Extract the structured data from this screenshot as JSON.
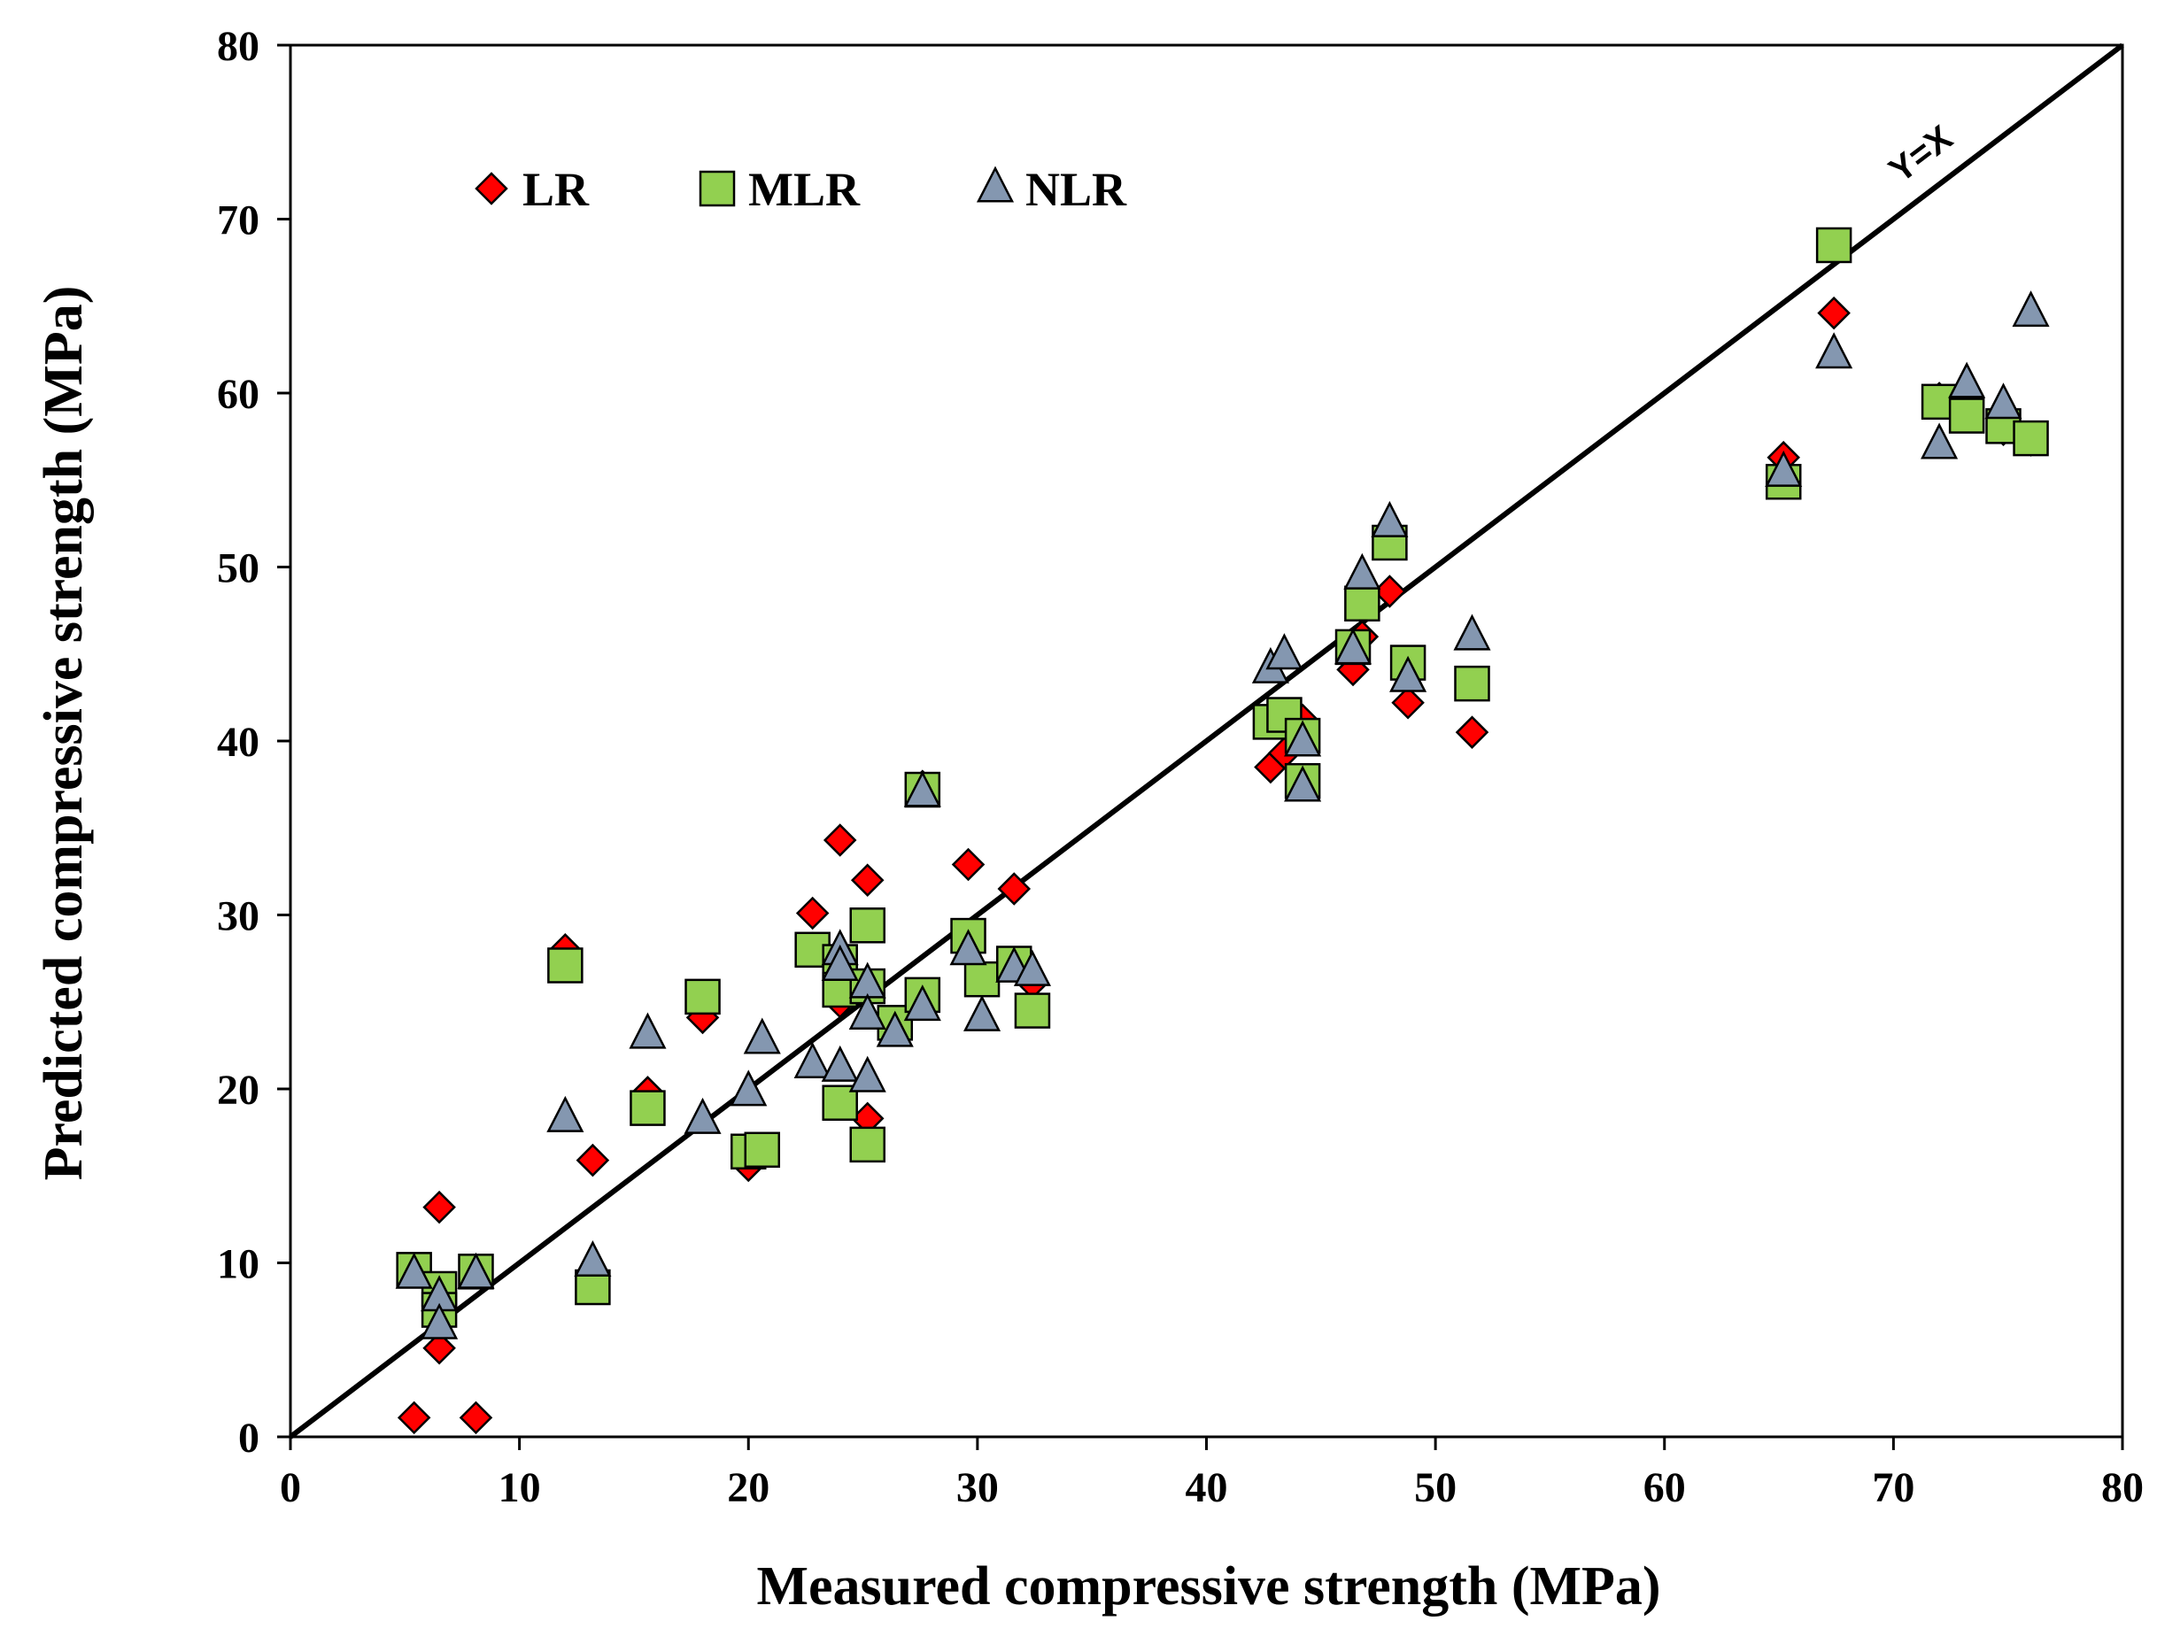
{
  "chart_data": {
    "type": "scatter",
    "title": "",
    "xlabel": "Measured compressive strength (MPa)",
    "ylabel": "Predicted compressive strength (MPa)",
    "xlim": [
      0,
      80
    ],
    "ylim": [
      0,
      80
    ],
    "xticks": [
      0,
      10,
      20,
      30,
      40,
      50,
      60,
      70,
      80
    ],
    "yticks": [
      0,
      10,
      20,
      30,
      40,
      50,
      60,
      70,
      80
    ],
    "grid": false,
    "legend_position": "top-left",
    "reference_line": {
      "label": "Y=X",
      "from": [
        0,
        0
      ],
      "to": [
        80,
        80
      ],
      "color": "#000000"
    },
    "series": [
      {
        "name": "LR",
        "marker": "diamond",
        "color": "#ff0000",
        "points": [
          [
            5.4,
            1.1
          ],
          [
            6.5,
            13.2
          ],
          [
            6.5,
            5.1
          ],
          [
            8.1,
            1.1
          ],
          [
            12.0,
            28.0
          ],
          [
            13.2,
            15.9
          ],
          [
            15.6,
            19.8
          ],
          [
            18.0,
            24.1
          ],
          [
            20.0,
            15.6
          ],
          [
            22.8,
            30.1
          ],
          [
            24.0,
            34.3
          ],
          [
            24.0,
            25.0
          ],
          [
            25.2,
            32.0
          ],
          [
            25.2,
            18.3
          ],
          [
            27.6,
            37.4
          ],
          [
            29.6,
            32.9
          ],
          [
            31.6,
            31.5
          ],
          [
            32.4,
            26.1
          ],
          [
            42.8,
            38.5
          ],
          [
            43.4,
            39.3
          ],
          [
            44.2,
            41.2
          ],
          [
            46.4,
            44.1
          ],
          [
            46.8,
            46.0
          ],
          [
            48.0,
            48.6
          ],
          [
            48.8,
            42.2
          ],
          [
            51.6,
            40.5
          ],
          [
            65.2,
            56.3
          ],
          [
            67.4,
            64.6
          ],
          [
            72.0,
            59.7
          ],
          [
            74.8,
            57.9
          ],
          [
            76.0,
            57.3
          ]
        ]
      },
      {
        "name": "MLR",
        "marker": "square",
        "color": "#92d050",
        "points": [
          [
            5.4,
            9.6
          ],
          [
            6.5,
            8.5
          ],
          [
            6.5,
            7.3
          ],
          [
            8.1,
            9.5
          ],
          [
            12.0,
            27.1
          ],
          [
            13.2,
            8.6
          ],
          [
            15.6,
            18.9
          ],
          [
            18.0,
            25.3
          ],
          [
            20.0,
            16.4
          ],
          [
            20.6,
            16.5
          ],
          [
            22.8,
            28.0
          ],
          [
            24.0,
            27.3
          ],
          [
            24.0,
            25.7
          ],
          [
            24.0,
            19.2
          ],
          [
            25.2,
            29.4
          ],
          [
            25.2,
            25.9
          ],
          [
            25.2,
            16.8
          ],
          [
            26.4,
            23.8
          ],
          [
            27.6,
            25.4
          ],
          [
            27.6,
            37.2
          ],
          [
            29.6,
            28.8
          ],
          [
            30.2,
            26.3
          ],
          [
            31.6,
            27.2
          ],
          [
            32.4,
            24.5
          ],
          [
            42.8,
            41.1
          ],
          [
            43.4,
            41.5
          ],
          [
            44.2,
            40.3
          ],
          [
            44.2,
            37.7
          ],
          [
            46.4,
            45.4
          ],
          [
            46.8,
            47.9
          ],
          [
            48.0,
            51.4
          ],
          [
            48.8,
            44.5
          ],
          [
            51.6,
            43.3
          ],
          [
            65.2,
            54.9
          ],
          [
            67.4,
            68.5
          ],
          [
            72.0,
            59.5
          ],
          [
            73.2,
            58.7
          ],
          [
            74.8,
            58.1
          ],
          [
            76.0,
            57.4
          ]
        ]
      },
      {
        "name": "NLR",
        "marker": "triangle",
        "color": "#8497b0",
        "points": [
          [
            5.4,
            9.3
          ],
          [
            6.5,
            8.0
          ],
          [
            6.5,
            6.4
          ],
          [
            8.1,
            9.3
          ],
          [
            12.0,
            18.3
          ],
          [
            13.2,
            10.0
          ],
          [
            15.6,
            23.1
          ],
          [
            18.0,
            18.2
          ],
          [
            20.0,
            19.8
          ],
          [
            20.6,
            22.8
          ],
          [
            22.8,
            21.4
          ],
          [
            24.0,
            27.9
          ],
          [
            24.0,
            27.0
          ],
          [
            24.0,
            21.2
          ],
          [
            25.2,
            26.0
          ],
          [
            25.2,
            24.2
          ],
          [
            25.2,
            20.6
          ],
          [
            26.4,
            23.2
          ],
          [
            27.6,
            24.7
          ],
          [
            27.6,
            37.0
          ],
          [
            29.6,
            27.9
          ],
          [
            30.2,
            24.1
          ],
          [
            31.6,
            26.9
          ],
          [
            32.4,
            26.7
          ],
          [
            42.8,
            44.1
          ],
          [
            43.4,
            44.9
          ],
          [
            44.2,
            39.9
          ],
          [
            44.2,
            37.3
          ],
          [
            46.4,
            45.2
          ],
          [
            46.8,
            49.5
          ],
          [
            48.0,
            52.5
          ],
          [
            48.8,
            43.6
          ],
          [
            51.6,
            46.0
          ],
          [
            65.2,
            55.4
          ],
          [
            67.4,
            62.2
          ],
          [
            72.0,
            57.0
          ],
          [
            73.2,
            60.5
          ],
          [
            74.8,
            59.3
          ],
          [
            76.0,
            64.6
          ]
        ]
      }
    ]
  }
}
